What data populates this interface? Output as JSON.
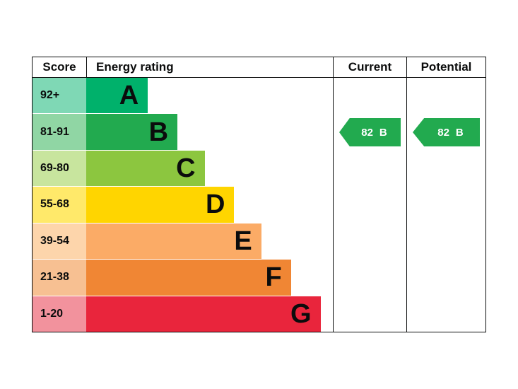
{
  "header": {
    "score": "Score",
    "energy_rating": "Energy rating",
    "current": "Current",
    "potential": "Potential"
  },
  "bands": [
    {
      "range": "92+",
      "letter": "A",
      "color": "#00b16b",
      "tint": "#7fd8b5",
      "width": "25%"
    },
    {
      "range": "81-91",
      "letter": "B",
      "color": "#22aa4f",
      "tint": "#90d6a4",
      "width": "37%"
    },
    {
      "range": "69-80",
      "letter": "C",
      "color": "#8cc63f",
      "tint": "#c8e59e",
      "width": "48%"
    },
    {
      "range": "55-68",
      "letter": "D",
      "color": "#ffd500",
      "tint": "#ffe96a",
      "width": "60%"
    },
    {
      "range": "39-54",
      "letter": "E",
      "color": "#fbab66",
      "tint": "#fdd5ab",
      "width": "71%"
    },
    {
      "range": "21-38",
      "letter": "F",
      "color": "#f08634",
      "tint": "#f7c092",
      "width": "83%"
    },
    {
      "range": "1-20",
      "letter": "G",
      "color": "#e9253c",
      "tint": "#f2929d",
      "width": "95%"
    }
  ],
  "current": {
    "value": "82",
    "letter": "B",
    "color": "#22aa4f"
  },
  "potential": {
    "value": "82",
    "letter": "B",
    "color": "#22aa4f"
  },
  "chart_data": {
    "type": "bar",
    "title": "Energy rating",
    "categories": [
      "A",
      "B",
      "C",
      "D",
      "E",
      "F",
      "G"
    ],
    "score_ranges": [
      "92+",
      "81-91",
      "69-80",
      "55-68",
      "39-54",
      "21-38",
      "1-20"
    ],
    "bar_width_pct": [
      25,
      37,
      48,
      60,
      71,
      83,
      95
    ],
    "band_colors": [
      "#00b16b",
      "#22aa4f",
      "#8cc63f",
      "#ffd500",
      "#fbab66",
      "#f08634",
      "#e9253c"
    ],
    "legend_position": "none",
    "current": {
      "score": 82,
      "band": "B"
    },
    "potential": {
      "score": 82,
      "band": "B"
    }
  }
}
